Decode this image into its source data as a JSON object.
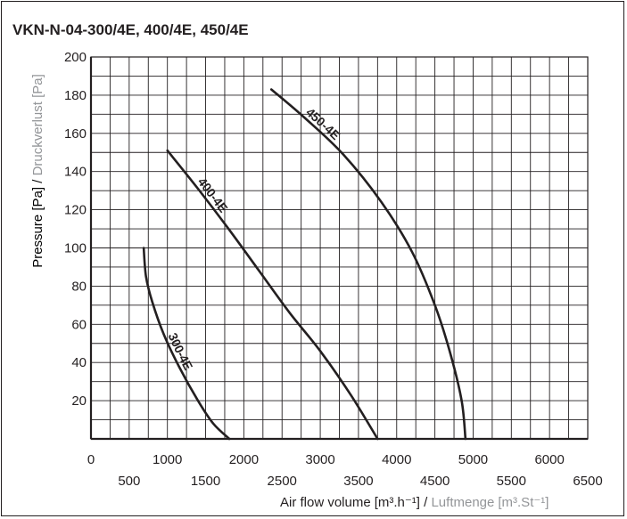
{
  "chart_data": {
    "type": "line",
    "title": "VKN-N-04-300/4E, 400/4E, 450/4E",
    "xlabel": {
      "main": "Air flow volume",
      "main_unit": "[m³.h⁻¹]",
      "separator": " / ",
      "secondary": "Luftmenge",
      "secondary_unit": "[m³.St⁻¹]"
    },
    "ylabel": {
      "main": "Pressure [Pa]",
      "separator": " / ",
      "secondary": "Druckverlust [Pa]"
    },
    "xlim": [
      0,
      6500
    ],
    "ylim": [
      0,
      200
    ],
    "x_ticks_lower": [
      "0",
      "1000",
      "2000",
      "3000",
      "4000",
      "5000",
      "6000"
    ],
    "x_ticks_upper": [
      "500",
      "1500",
      "2500",
      "3500",
      "4500",
      "5500",
      "6500"
    ],
    "y_ticks": [
      "20",
      "40",
      "60",
      "80",
      "100",
      "120",
      "140",
      "160",
      "180",
      "200"
    ],
    "grid": true,
    "series": [
      {
        "name": "300-4E",
        "points": [
          [
            690,
            100
          ],
          [
            720,
            85
          ],
          [
            800,
            72
          ],
          [
            950,
            55
          ],
          [
            1150,
            38
          ],
          [
            1400,
            20
          ],
          [
            1600,
            8
          ],
          [
            1810,
            0
          ]
        ]
      },
      {
        "name": "400-4E",
        "points": [
          [
            1000,
            151
          ],
          [
            1400,
            131
          ],
          [
            1800,
            110
          ],
          [
            2200,
            88
          ],
          [
            2600,
            66
          ],
          [
            3000,
            46
          ],
          [
            3400,
            23
          ],
          [
            3750,
            0
          ]
        ]
      },
      {
        "name": "450-4E",
        "points": [
          [
            2360,
            183
          ],
          [
            2800,
            168
          ],
          [
            3300,
            149
          ],
          [
            3800,
            124
          ],
          [
            4200,
            98
          ],
          [
            4500,
            70
          ],
          [
            4700,
            45
          ],
          [
            4850,
            20
          ],
          [
            4900,
            0
          ]
        ]
      }
    ],
    "colors": {
      "line": "#231f20",
      "grid": "#231f20",
      "secondary_text": "#939598"
    }
  }
}
